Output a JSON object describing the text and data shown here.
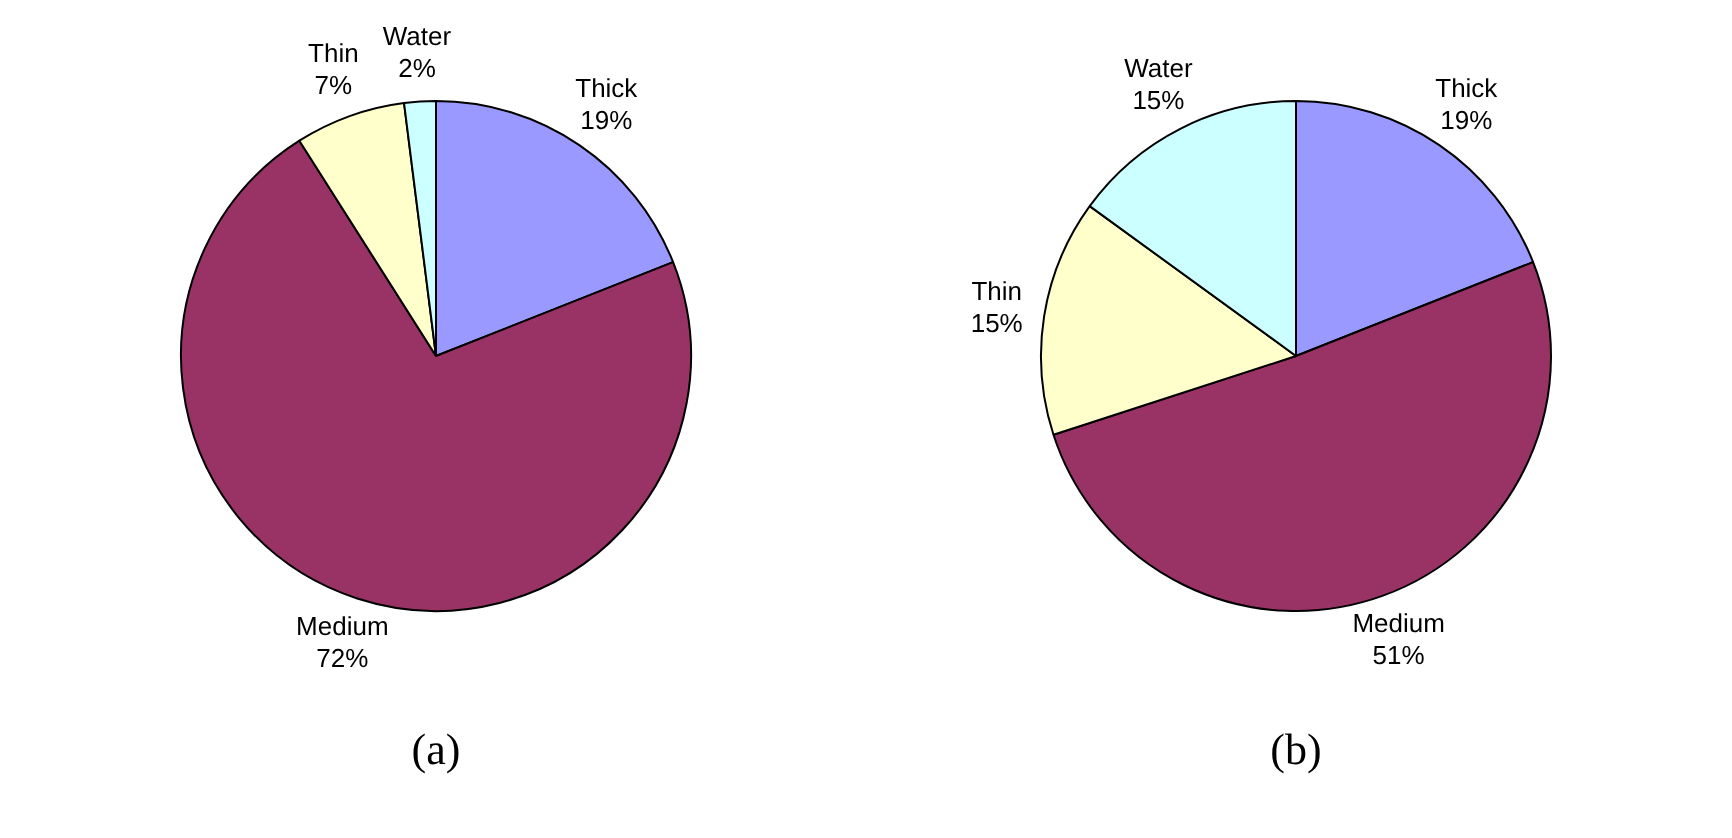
{
  "chart_data": [
    {
      "type": "pie",
      "title": "(a)",
      "categories": [
        "Thick",
        "Medium",
        "Thin",
        "Water"
      ],
      "values": [
        19,
        72,
        7,
        2
      ],
      "colors": [
        "#9999ff",
        "#993366",
        "#ffffcc",
        "#ccffff"
      ],
      "value_labels": [
        "19%",
        "72%",
        "7%",
        "2%"
      ]
    },
    {
      "type": "pie",
      "title": "(b)",
      "categories": [
        "Thick",
        "Medium",
        "Thin",
        "Water"
      ],
      "values": [
        19,
        51,
        15,
        15
      ],
      "colors": [
        "#9999ff",
        "#993366",
        "#ffffcc",
        "#ccffff"
      ],
      "value_labels": [
        "19%",
        "51%",
        "15%",
        "15%"
      ]
    }
  ]
}
